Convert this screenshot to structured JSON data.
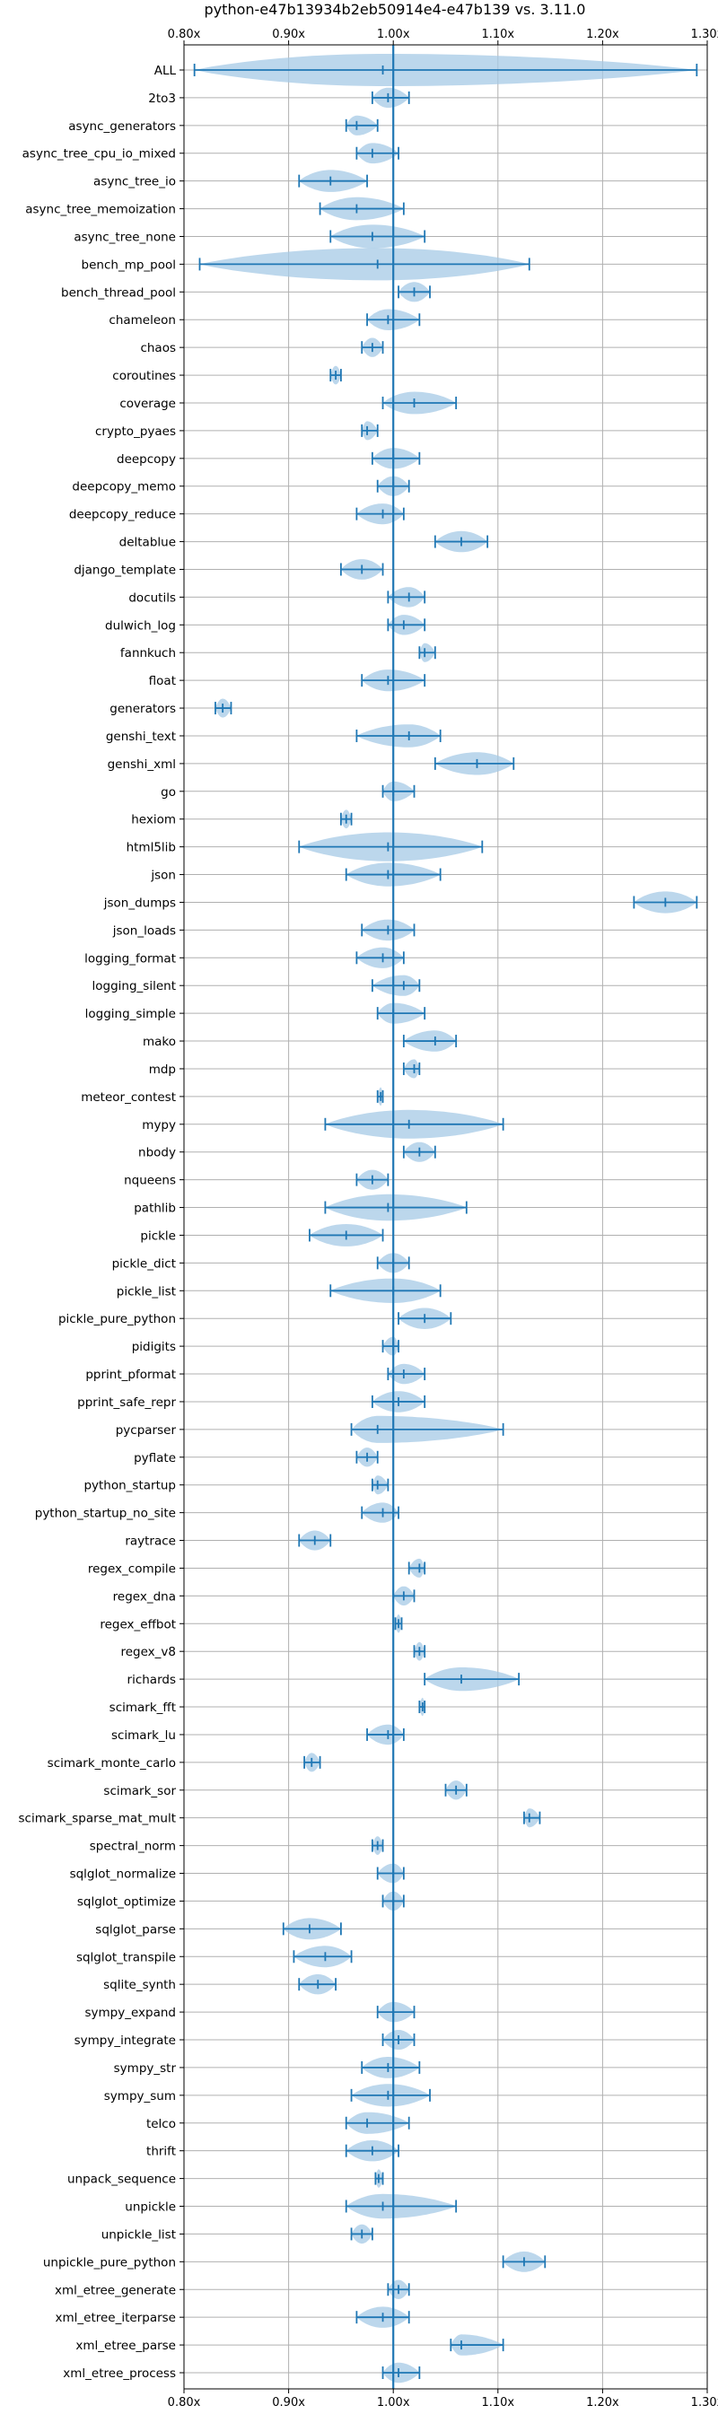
{
  "chart_data": {
    "type": "violin",
    "title": "python-e47b13934b2eb50914e4-e47b139 vs. 3.11.0",
    "orientation": "horizontal",
    "xlim": [
      0.8,
      1.3
    ],
    "xticks": [
      0.8,
      0.9,
      1.0,
      1.1,
      1.2,
      1.3
    ],
    "xtick_labels": [
      "0.80x",
      "0.90x",
      "1.00x",
      "1.10x",
      "1.20x",
      "1.30x"
    ],
    "reference_line": 1.0,
    "grid": true,
    "colors": {
      "violin": "#a6c9e6",
      "line": "#1f77b4",
      "grid": "#b0b0b0"
    },
    "series": [
      {
        "name": "ALL",
        "min": 0.81,
        "median": 0.99,
        "max": 1.29
      },
      {
        "name": "2to3",
        "min": 0.98,
        "median": 0.995,
        "max": 1.015
      },
      {
        "name": "async_generators",
        "min": 0.955,
        "median": 0.965,
        "max": 0.985
      },
      {
        "name": "async_tree_cpu_io_mixed",
        "min": 0.965,
        "median": 0.98,
        "max": 1.005
      },
      {
        "name": "async_tree_io",
        "min": 0.91,
        "median": 0.94,
        "max": 0.975
      },
      {
        "name": "async_tree_memoization",
        "min": 0.93,
        "median": 0.965,
        "max": 1.01
      },
      {
        "name": "async_tree_none",
        "min": 0.94,
        "median": 0.98,
        "max": 1.03
      },
      {
        "name": "bench_mp_pool",
        "min": 0.815,
        "median": 0.985,
        "max": 1.13
      },
      {
        "name": "bench_thread_pool",
        "min": 1.005,
        "median": 1.02,
        "max": 1.035
      },
      {
        "name": "chameleon",
        "min": 0.975,
        "median": 0.995,
        "max": 1.025
      },
      {
        "name": "chaos",
        "min": 0.97,
        "median": 0.98,
        "max": 0.99
      },
      {
        "name": "coroutines",
        "min": 0.94,
        "median": 0.945,
        "max": 0.95
      },
      {
        "name": "coverage",
        "min": 0.99,
        "median": 1.02,
        "max": 1.06
      },
      {
        "name": "crypto_pyaes",
        "min": 0.97,
        "median": 0.975,
        "max": 0.985
      },
      {
        "name": "deepcopy",
        "min": 0.98,
        "median": 1.0,
        "max": 1.025
      },
      {
        "name": "deepcopy_memo",
        "min": 0.985,
        "median": 1.0,
        "max": 1.015
      },
      {
        "name": "deepcopy_reduce",
        "min": 0.965,
        "median": 0.99,
        "max": 1.01
      },
      {
        "name": "deltablue",
        "min": 1.04,
        "median": 1.065,
        "max": 1.09
      },
      {
        "name": "django_template",
        "min": 0.95,
        "median": 0.97,
        "max": 0.99
      },
      {
        "name": "docutils",
        "min": 0.995,
        "median": 1.015,
        "max": 1.03
      },
      {
        "name": "dulwich_log",
        "min": 0.995,
        "median": 1.01,
        "max": 1.03
      },
      {
        "name": "fannkuch",
        "min": 1.025,
        "median": 1.03,
        "max": 1.04
      },
      {
        "name": "float",
        "min": 0.97,
        "median": 0.995,
        "max": 1.03
      },
      {
        "name": "generators",
        "min": 0.83,
        "median": 0.837,
        "max": 0.845
      },
      {
        "name": "genshi_text",
        "min": 0.965,
        "median": 1.015,
        "max": 1.045
      },
      {
        "name": "genshi_xml",
        "min": 1.04,
        "median": 1.08,
        "max": 1.115
      },
      {
        "name": "go",
        "min": 0.99,
        "median": 1.0,
        "max": 1.02
      },
      {
        "name": "hexiom",
        "min": 0.95,
        "median": 0.955,
        "max": 0.96
      },
      {
        "name": "html5lib",
        "min": 0.91,
        "median": 0.995,
        "max": 1.085
      },
      {
        "name": "json",
        "min": 0.955,
        "median": 0.995,
        "max": 1.045
      },
      {
        "name": "json_dumps",
        "min": 1.23,
        "median": 1.26,
        "max": 1.29
      },
      {
        "name": "json_loads",
        "min": 0.97,
        "median": 0.995,
        "max": 1.02
      },
      {
        "name": "logging_format",
        "min": 0.965,
        "median": 0.99,
        "max": 1.01
      },
      {
        "name": "logging_silent",
        "min": 0.98,
        "median": 1.01,
        "max": 1.025
      },
      {
        "name": "logging_simple",
        "min": 0.985,
        "median": 1.0,
        "max": 1.03
      },
      {
        "name": "mako",
        "min": 1.01,
        "median": 1.04,
        "max": 1.06
      },
      {
        "name": "mdp",
        "min": 1.01,
        "median": 1.02,
        "max": 1.025
      },
      {
        "name": "meteor_contest",
        "min": 0.985,
        "median": 0.988,
        "max": 0.99
      },
      {
        "name": "mypy",
        "min": 0.935,
        "median": 1.015,
        "max": 1.105
      },
      {
        "name": "nbody",
        "min": 1.01,
        "median": 1.025,
        "max": 1.04
      },
      {
        "name": "nqueens",
        "min": 0.965,
        "median": 0.98,
        "max": 0.995
      },
      {
        "name": "pathlib",
        "min": 0.935,
        "median": 0.995,
        "max": 1.07
      },
      {
        "name": "pickle",
        "min": 0.92,
        "median": 0.955,
        "max": 0.99
      },
      {
        "name": "pickle_dict",
        "min": 0.985,
        "median": 1.0,
        "max": 1.015
      },
      {
        "name": "pickle_list",
        "min": 0.94,
        "median": 1.0,
        "max": 1.045
      },
      {
        "name": "pickle_pure_python",
        "min": 1.005,
        "median": 1.03,
        "max": 1.055
      },
      {
        "name": "pidigits",
        "min": 0.99,
        "median": 1.0,
        "max": 1.005
      },
      {
        "name": "pprint_pformat",
        "min": 0.995,
        "median": 1.01,
        "max": 1.03
      },
      {
        "name": "pprint_safe_repr",
        "min": 0.98,
        "median": 1.005,
        "max": 1.03
      },
      {
        "name": "pycparser",
        "min": 0.96,
        "median": 0.985,
        "max": 1.105
      },
      {
        "name": "pyflate",
        "min": 0.965,
        "median": 0.975,
        "max": 0.985
      },
      {
        "name": "python_startup",
        "min": 0.98,
        "median": 0.985,
        "max": 0.995
      },
      {
        "name": "python_startup_no_site",
        "min": 0.97,
        "median": 0.99,
        "max": 1.005
      },
      {
        "name": "raytrace",
        "min": 0.91,
        "median": 0.925,
        "max": 0.94
      },
      {
        "name": "regex_compile",
        "min": 1.015,
        "median": 1.025,
        "max": 1.03
      },
      {
        "name": "regex_dna",
        "min": 1.0,
        "median": 1.01,
        "max": 1.02
      },
      {
        "name": "regex_effbot",
        "min": 1.002,
        "median": 1.005,
        "max": 1.008
      },
      {
        "name": "regex_v8",
        "min": 1.02,
        "median": 1.025,
        "max": 1.03
      },
      {
        "name": "richards",
        "min": 1.03,
        "median": 1.065,
        "max": 1.12
      },
      {
        "name": "scimark_fft",
        "min": 1.025,
        "median": 1.028,
        "max": 1.03
      },
      {
        "name": "scimark_lu",
        "min": 0.975,
        "median": 0.995,
        "max": 1.01
      },
      {
        "name": "scimark_monte_carlo",
        "min": 0.915,
        "median": 0.922,
        "max": 0.93
      },
      {
        "name": "scimark_sor",
        "min": 1.05,
        "median": 1.06,
        "max": 1.07
      },
      {
        "name": "scimark_sparse_mat_mult",
        "min": 1.125,
        "median": 1.13,
        "max": 1.14
      },
      {
        "name": "spectral_norm",
        "min": 0.98,
        "median": 0.985,
        "max": 0.99
      },
      {
        "name": "sqlglot_normalize",
        "min": 0.985,
        "median": 1.0,
        "max": 1.01
      },
      {
        "name": "sqlglot_optimize",
        "min": 0.99,
        "median": 1.0,
        "max": 1.01
      },
      {
        "name": "sqlglot_parse",
        "min": 0.895,
        "median": 0.92,
        "max": 0.95
      },
      {
        "name": "sqlglot_transpile",
        "min": 0.905,
        "median": 0.935,
        "max": 0.96
      },
      {
        "name": "sqlite_synth",
        "min": 0.91,
        "median": 0.928,
        "max": 0.945
      },
      {
        "name": "sympy_expand",
        "min": 0.985,
        "median": 1.0,
        "max": 1.02
      },
      {
        "name": "sympy_integrate",
        "min": 0.99,
        "median": 1.005,
        "max": 1.02
      },
      {
        "name": "sympy_str",
        "min": 0.97,
        "median": 0.995,
        "max": 1.025
      },
      {
        "name": "sympy_sum",
        "min": 0.96,
        "median": 0.995,
        "max": 1.035
      },
      {
        "name": "telco",
        "min": 0.955,
        "median": 0.975,
        "max": 1.015
      },
      {
        "name": "thrift",
        "min": 0.955,
        "median": 0.98,
        "max": 1.005
      },
      {
        "name": "unpack_sequence",
        "min": 0.983,
        "median": 0.986,
        "max": 0.99
      },
      {
        "name": "unpickle",
        "min": 0.955,
        "median": 0.99,
        "max": 1.06
      },
      {
        "name": "unpickle_list",
        "min": 0.96,
        "median": 0.97,
        "max": 0.98
      },
      {
        "name": "unpickle_pure_python",
        "min": 1.105,
        "median": 1.125,
        "max": 1.145
      },
      {
        "name": "xml_etree_generate",
        "min": 0.995,
        "median": 1.005,
        "max": 1.015
      },
      {
        "name": "xml_etree_iterparse",
        "min": 0.965,
        "median": 0.99,
        "max": 1.015
      },
      {
        "name": "xml_etree_parse",
        "min": 1.055,
        "median": 1.065,
        "max": 1.105
      },
      {
        "name": "xml_etree_process",
        "min": 0.99,
        "median": 1.005,
        "max": 1.025
      }
    ]
  }
}
